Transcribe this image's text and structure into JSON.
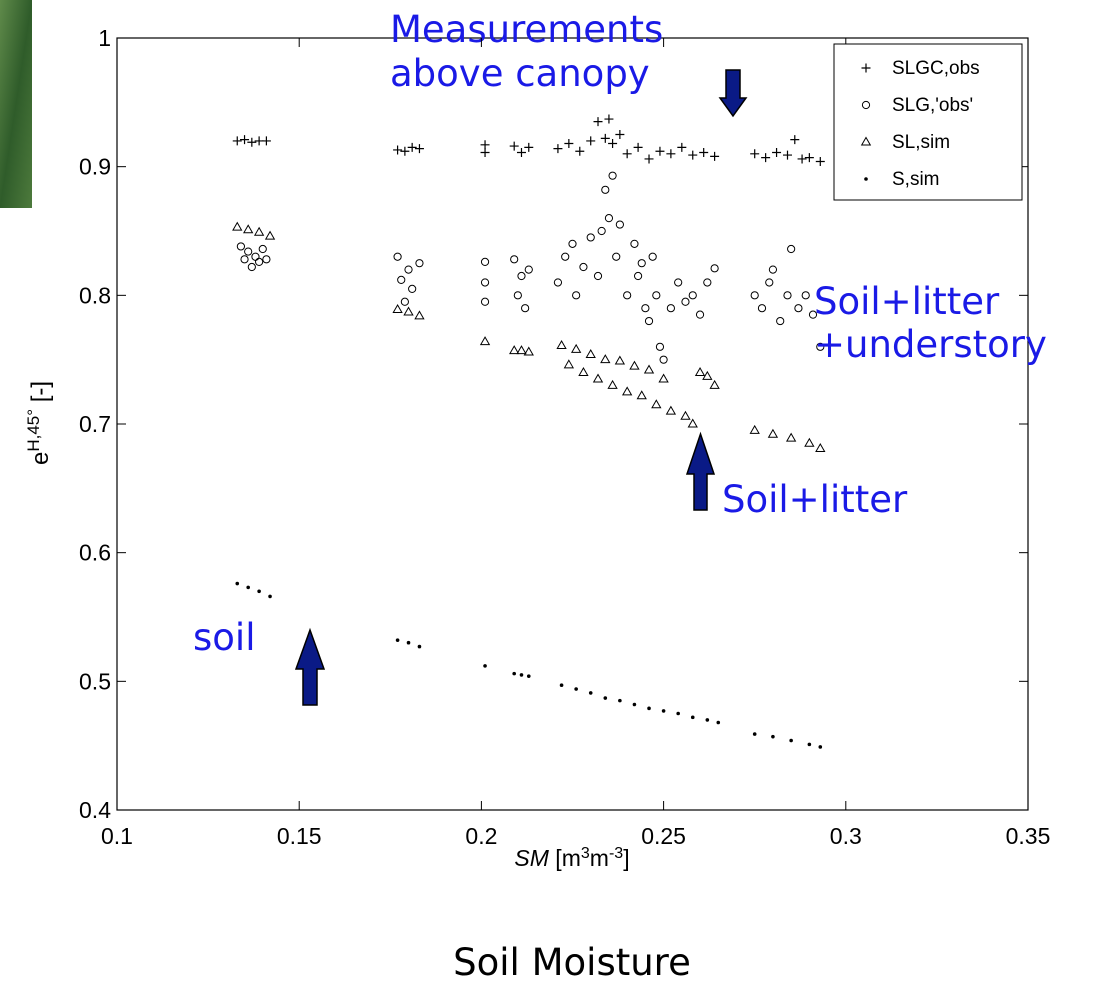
{
  "chart_data": {
    "type": "scatter",
    "xlabel_parts": [
      "SM",
      " [m",
      "3",
      "m",
      "-3",
      "]"
    ],
    "ylabel_parts": [
      "e",
      "H,45°",
      " [-]"
    ],
    "caption": "Soil Moisture",
    "annotations": [
      "Measurements",
      "above canopy",
      "Soil+litter",
      "+understory",
      "Soil+litter",
      "soil"
    ],
    "annotation_color": "#1a1ae6",
    "xlim": [
      0.1,
      0.35
    ],
    "xticks": [
      0.1,
      0.15,
      0.2,
      0.25,
      0.3,
      0.35
    ],
    "ylim": [
      0.4,
      1
    ],
    "yticks": [
      0.4,
      0.5,
      0.6,
      0.7,
      0.8,
      0.9,
      1
    ],
    "grid": false,
    "legend": "upper right",
    "series": [
      {
        "name": "SLGC,obs",
        "color": "#000000",
        "marker": "plus",
        "x": [
          0.133,
          0.135,
          0.137,
          0.139,
          0.141,
          0.177,
          0.179,
          0.181,
          0.183,
          0.201,
          0.201,
          0.209,
          0.211,
          0.213,
          0.221,
          0.224,
          0.227,
          0.23,
          0.232,
          0.234,
          0.235,
          0.236,
          0.238,
          0.24,
          0.243,
          0.246,
          0.249,
          0.252,
          0.255,
          0.258,
          0.261,
          0.264,
          0.275,
          0.278,
          0.281,
          0.284,
          0.286,
          0.288,
          0.29,
          0.293
        ],
        "values": [
          0.92,
          0.921,
          0.919,
          0.92,
          0.92,
          0.913,
          0.912,
          0.915,
          0.914,
          0.917,
          0.911,
          0.916,
          0.911,
          0.915,
          0.914,
          0.918,
          0.912,
          0.92,
          0.935,
          0.922,
          0.937,
          0.918,
          0.925,
          0.91,
          0.915,
          0.906,
          0.912,
          0.91,
          0.915,
          0.909,
          0.911,
          0.908,
          0.91,
          0.907,
          0.911,
          0.909,
          0.921,
          0.906,
          0.907,
          0.904
        ]
      },
      {
        "name": "SLG,'obs'",
        "color": "#000000",
        "marker": "circle",
        "x": [
          0.134,
          0.135,
          0.136,
          0.137,
          0.138,
          0.139,
          0.14,
          0.141,
          0.177,
          0.178,
          0.179,
          0.18,
          0.181,
          0.183,
          0.201,
          0.201,
          0.201,
          0.209,
          0.21,
          0.211,
          0.212,
          0.213,
          0.221,
          0.223,
          0.225,
          0.226,
          0.228,
          0.23,
          0.232,
          0.233,
          0.234,
          0.235,
          0.236,
          0.237,
          0.238,
          0.24,
          0.242,
          0.243,
          0.244,
          0.245,
          0.246,
          0.247,
          0.248,
          0.249,
          0.25,
          0.252,
          0.254,
          0.256,
          0.258,
          0.26,
          0.262,
          0.264,
          0.275,
          0.277,
          0.279,
          0.28,
          0.282,
          0.284,
          0.285,
          0.287,
          0.289,
          0.291,
          0.293
        ],
        "values": [
          0.838,
          0.828,
          0.834,
          0.822,
          0.83,
          0.826,
          0.836,
          0.828,
          0.83,
          0.812,
          0.795,
          0.82,
          0.805,
          0.825,
          0.826,
          0.81,
          0.795,
          0.828,
          0.8,
          0.815,
          0.79,
          0.82,
          0.81,
          0.83,
          0.84,
          0.8,
          0.822,
          0.845,
          0.815,
          0.85,
          0.882,
          0.86,
          0.893,
          0.83,
          0.855,
          0.8,
          0.84,
          0.815,
          0.825,
          0.79,
          0.78,
          0.83,
          0.8,
          0.76,
          0.75,
          0.79,
          0.81,
          0.795,
          0.8,
          0.785,
          0.81,
          0.821,
          0.8,
          0.79,
          0.81,
          0.82,
          0.78,
          0.8,
          0.836,
          0.79,
          0.8,
          0.785,
          0.76
        ]
      },
      {
        "name": "SL,sim",
        "color": "#000000",
        "marker": "triangle",
        "x": [
          0.133,
          0.136,
          0.139,
          0.142,
          0.177,
          0.18,
          0.183,
          0.201,
          0.209,
          0.211,
          0.213,
          0.222,
          0.226,
          0.23,
          0.234,
          0.238,
          0.242,
          0.246,
          0.25,
          0.224,
          0.228,
          0.232,
          0.236,
          0.24,
          0.244,
          0.248,
          0.252,
          0.256,
          0.258,
          0.26,
          0.262,
          0.264,
          0.275,
          0.28,
          0.285,
          0.29,
          0.293
        ],
        "values": [
          0.853,
          0.851,
          0.849,
          0.846,
          0.789,
          0.787,
          0.784,
          0.764,
          0.757,
          0.757,
          0.756,
          0.761,
          0.758,
          0.754,
          0.75,
          0.749,
          0.745,
          0.742,
          0.735,
          0.746,
          0.74,
          0.735,
          0.73,
          0.725,
          0.722,
          0.715,
          0.71,
          0.706,
          0.7,
          0.74,
          0.737,
          0.73,
          0.695,
          0.692,
          0.689,
          0.685,
          0.681
        ]
      },
      {
        "name": "S,sim",
        "color": "#000000",
        "marker": "dot",
        "x": [
          0.133,
          0.136,
          0.139,
          0.142,
          0.177,
          0.18,
          0.183,
          0.201,
          0.209,
          0.211,
          0.213,
          0.222,
          0.226,
          0.23,
          0.234,
          0.238,
          0.242,
          0.246,
          0.25,
          0.254,
          0.258,
          0.262,
          0.265,
          0.275,
          0.28,
          0.285,
          0.29,
          0.293
        ],
        "values": [
          0.576,
          0.573,
          0.57,
          0.566,
          0.532,
          0.53,
          0.527,
          0.512,
          0.506,
          0.505,
          0.504,
          0.497,
          0.494,
          0.491,
          0.487,
          0.485,
          0.482,
          0.479,
          0.477,
          0.475,
          0.472,
          0.47,
          0.468,
          0.459,
          0.457,
          0.454,
          0.451,
          0.449
        ]
      }
    ]
  }
}
